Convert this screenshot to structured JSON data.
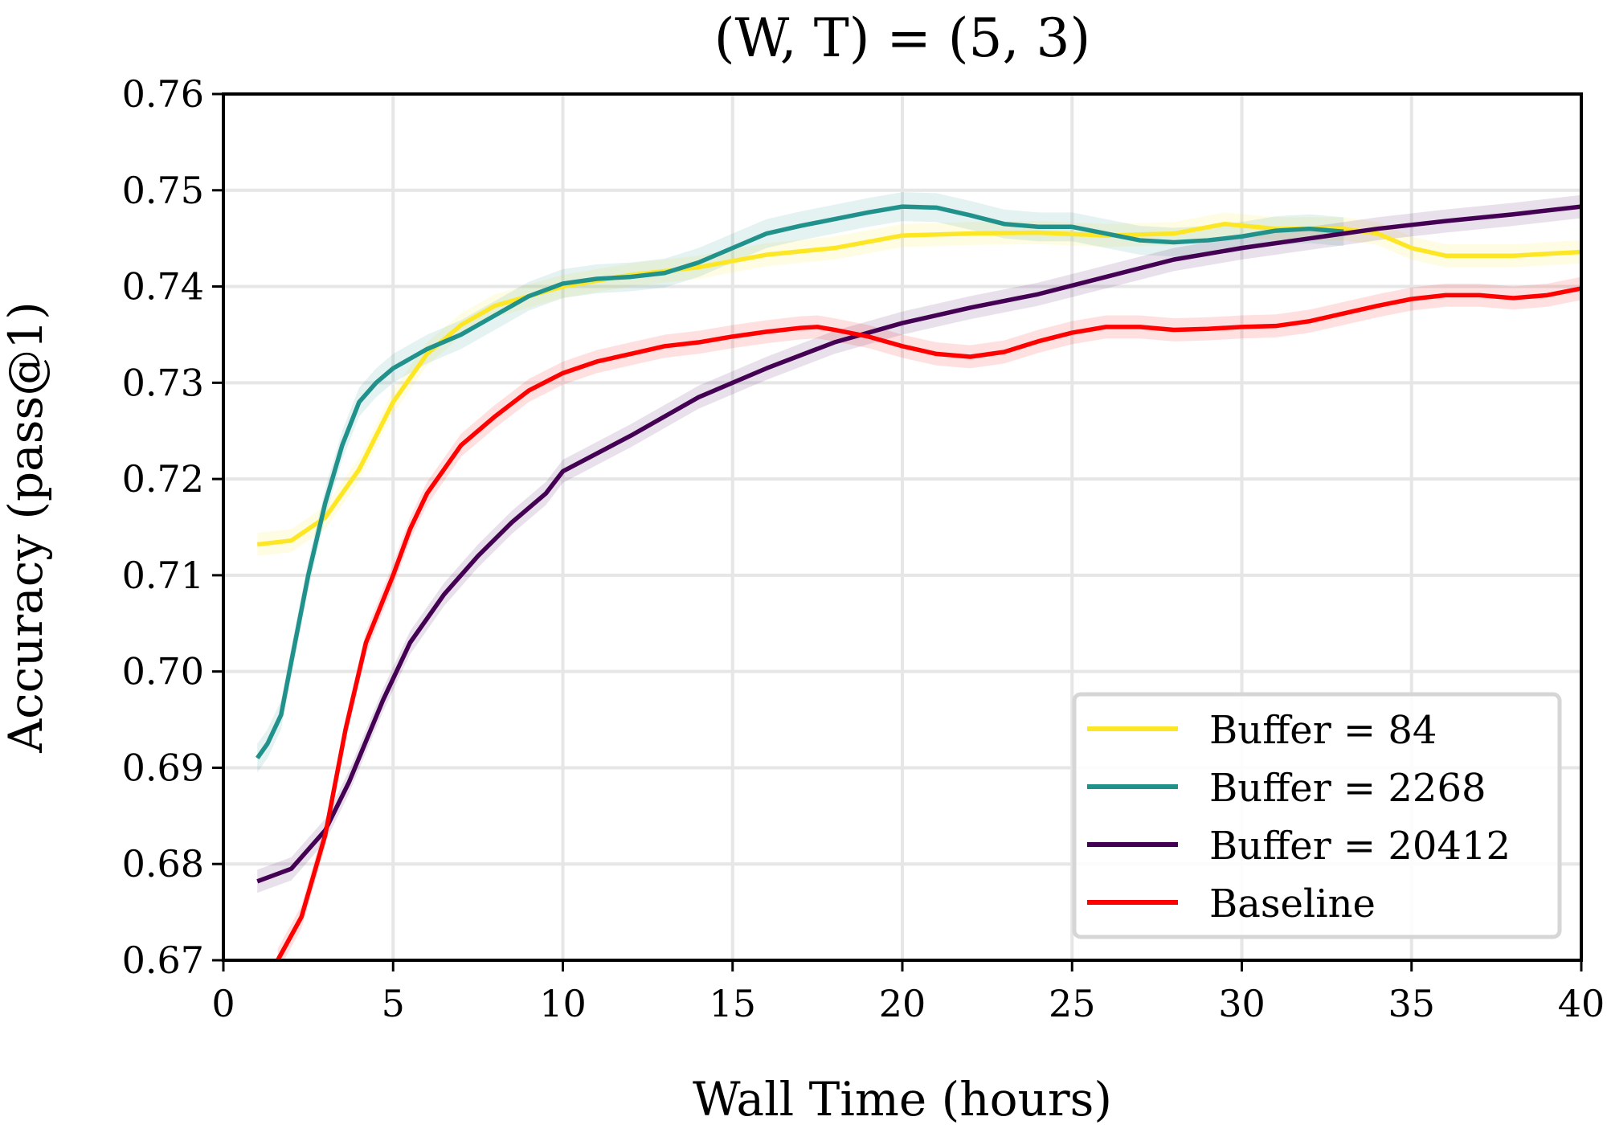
{
  "chart_data": {
    "type": "line",
    "title": "(W, T) = (5, 3)",
    "xlabel": "Wall Time (hours)",
    "ylabel": "Accuracy (pass@1)",
    "xlim": [
      0,
      40
    ],
    "ylim": [
      0.67,
      0.76
    ],
    "xticks": [
      0,
      5,
      10,
      15,
      20,
      25,
      30,
      35,
      40
    ],
    "yticks": [
      0.67,
      0.68,
      0.69,
      0.7,
      0.71,
      0.72,
      0.73,
      0.74,
      0.75,
      0.76
    ],
    "ytick_labels": [
      "0.67",
      "0.68",
      "0.69",
      "0.70",
      "0.71",
      "0.72",
      "0.73",
      "0.74",
      "0.75",
      "0.76"
    ],
    "grid": true,
    "legend_placement": "lower-right",
    "series": [
      {
        "name": "Buffer = 84",
        "color": "#fde725",
        "band": 0.0012,
        "x": [
          1,
          2,
          3,
          4,
          5,
          6,
          7,
          8,
          9,
          10,
          12,
          14,
          16,
          18,
          20,
          22,
          24,
          26,
          28,
          29.5,
          31,
          33,
          34,
          35,
          36,
          38,
          40
        ],
        "y": [
          0.7132,
          0.7136,
          0.716,
          0.721,
          0.728,
          0.733,
          0.736,
          0.738,
          0.739,
          0.74,
          0.7412,
          0.742,
          0.7433,
          0.744,
          0.7453,
          0.7455,
          0.7456,
          0.7453,
          0.7455,
          0.7465,
          0.746,
          0.746,
          0.7455,
          0.744,
          0.7432,
          0.7432,
          0.7436
        ]
      },
      {
        "name": "Buffer = 2268",
        "color": "#21918c",
        "band": 0.0015,
        "x": [
          1,
          1.3,
          1.7,
          2,
          2.5,
          3,
          3.5,
          4,
          4.5,
          5,
          6,
          7,
          8,
          9,
          10,
          11,
          12,
          13,
          14,
          15,
          16,
          17,
          18,
          19,
          20,
          21,
          22,
          23,
          24,
          25,
          26,
          27,
          28,
          29,
          30,
          31,
          32,
          33
        ],
        "y": [
          0.691,
          0.6925,
          0.6955,
          0.701,
          0.71,
          0.7175,
          0.7235,
          0.728,
          0.73,
          0.7315,
          0.7335,
          0.735,
          0.737,
          0.739,
          0.7403,
          0.7408,
          0.741,
          0.7414,
          0.7425,
          0.744,
          0.7455,
          0.7463,
          0.747,
          0.7477,
          0.7483,
          0.7482,
          0.7474,
          0.7465,
          0.7462,
          0.7462,
          0.7455,
          0.7448,
          0.7446,
          0.7448,
          0.7452,
          0.7458,
          0.746,
          0.7457
        ]
      },
      {
        "name": "Buffer = 20412",
        "color": "#440154",
        "band": 0.0012,
        "x": [
          1,
          2,
          3,
          3.7,
          4.7,
          5.5,
          6.5,
          7.5,
          8.5,
          9.5,
          10,
          12,
          14,
          16,
          18,
          20,
          22,
          24,
          26,
          28,
          30,
          32,
          34,
          36,
          38,
          40
        ],
        "y": [
          0.6782,
          0.6795,
          0.6835,
          0.6885,
          0.697,
          0.703,
          0.708,
          0.712,
          0.7155,
          0.7185,
          0.7208,
          0.7245,
          0.7285,
          0.7315,
          0.7342,
          0.7362,
          0.7378,
          0.7392,
          0.741,
          0.7428,
          0.744,
          0.745,
          0.746,
          0.7468,
          0.7475,
          0.7483
        ]
      },
      {
        "name": "Baseline",
        "color": "#ff0000",
        "band": 0.0012,
        "x": [
          1.6,
          2.3,
          3,
          3.6,
          4.2,
          5,
          5.5,
          6,
          7,
          8,
          9,
          10,
          11,
          12,
          13,
          14,
          15,
          16,
          17,
          17.5,
          18,
          19,
          20,
          21,
          22,
          23,
          24,
          25,
          26,
          27,
          28,
          29,
          30,
          31,
          32,
          33,
          34,
          35,
          36,
          37,
          38,
          39,
          40
        ],
        "y": [
          0.67,
          0.6745,
          0.683,
          0.694,
          0.703,
          0.71,
          0.7148,
          0.7185,
          0.7235,
          0.7265,
          0.7292,
          0.731,
          0.7322,
          0.733,
          0.7338,
          0.7342,
          0.7348,
          0.7353,
          0.7357,
          0.7358,
          0.7355,
          0.7348,
          0.7338,
          0.733,
          0.7327,
          0.7332,
          0.7343,
          0.7352,
          0.7358,
          0.7358,
          0.7355,
          0.7356,
          0.7358,
          0.7359,
          0.7364,
          0.7372,
          0.738,
          0.7387,
          0.7391,
          0.7391,
          0.7388,
          0.7391,
          0.7398
        ]
      }
    ]
  }
}
